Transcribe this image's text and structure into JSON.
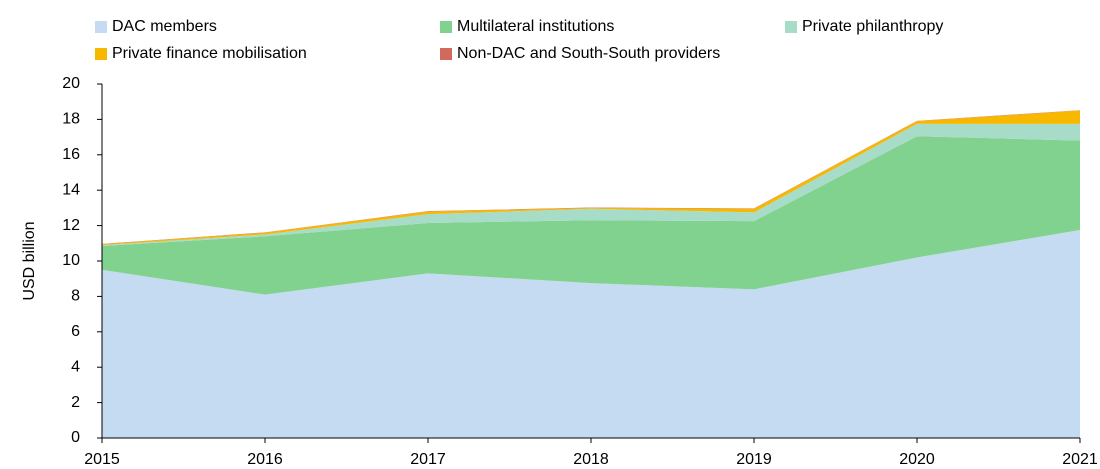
{
  "chart_data": {
    "type": "stacked_area",
    "ylabel": "USD billion",
    "x": [
      2015,
      2016,
      2017,
      2018,
      2019,
      2020,
      2021
    ],
    "xlim": [
      2015,
      2021
    ],
    "ylim": [
      0,
      20
    ],
    "yticks": [
      0,
      2,
      4,
      6,
      8,
      10,
      12,
      14,
      16,
      18,
      20
    ],
    "grid": false,
    "legend": "top",
    "series": [
      {
        "name": "DAC members",
        "color": "#c5dbf2",
        "values": [
          9.5,
          8.1,
          9.3,
          8.75,
          8.4,
          10.2,
          11.75
        ]
      },
      {
        "name": "Multilateral institutions",
        "color": "#82d28f",
        "values": [
          1.35,
          3.3,
          2.85,
          3.55,
          3.85,
          6.85,
          5.05
        ]
      },
      {
        "name": "Private philanthropy",
        "color": "#a7dcc9",
        "values": [
          0.05,
          0.1,
          0.5,
          0.65,
          0.5,
          0.7,
          0.95
        ]
      },
      {
        "name": "Private finance mobilisation",
        "color": "#f7b800",
        "values": [
          0.05,
          0.1,
          0.15,
          0.05,
          0.2,
          0.15,
          0.75
        ]
      },
      {
        "name": "Non-DAC and South-South providers",
        "color": "#d06a5a",
        "values": [
          0.02,
          0.02,
          0.02,
          0.02,
          0.02,
          0.02,
          0.02
        ]
      }
    ]
  }
}
